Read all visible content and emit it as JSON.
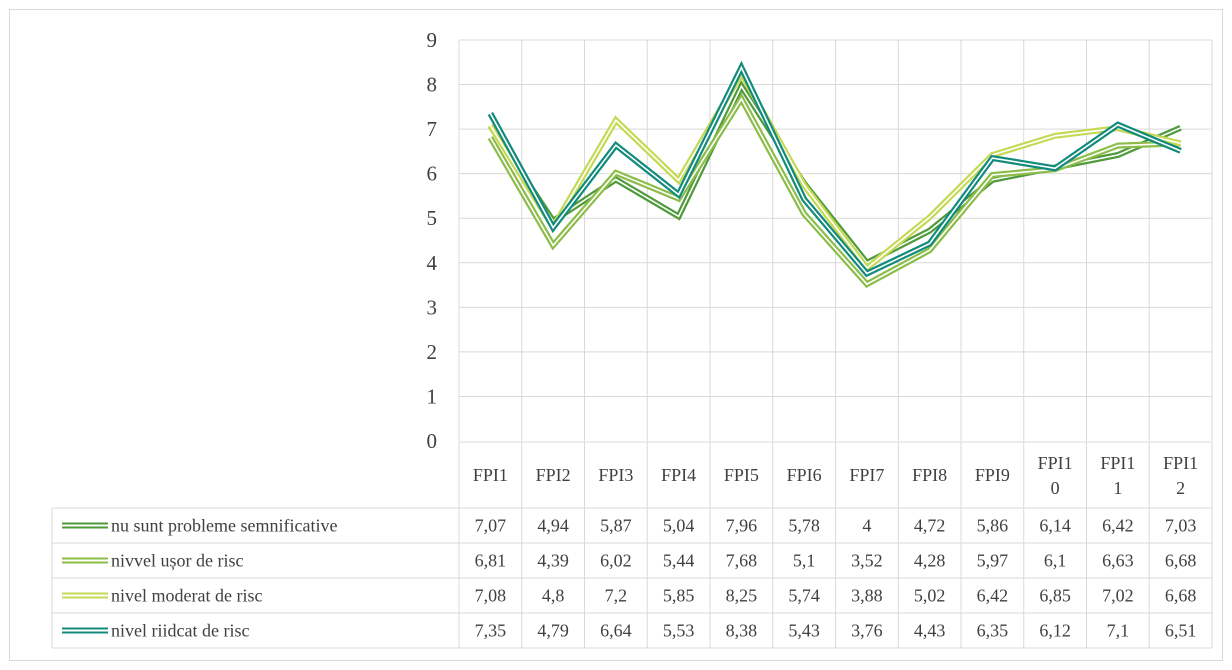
{
  "chart_data": {
    "type": "line",
    "title": "",
    "xlabel": "",
    "ylabel": "",
    "ylim": [
      0,
      9
    ],
    "yticks": [
      "0",
      "1",
      "2",
      "3",
      "4",
      "5",
      "6",
      "7",
      "8",
      "9"
    ],
    "grid": true,
    "legend_position": "data-table",
    "categories": [
      "FPI1",
      "FPI2",
      "FPI3",
      "FPI4",
      "FPI5",
      "FPI6",
      "FPI7",
      "FPI8",
      "FPI9",
      "FPI10",
      "FPI11",
      "FPI12"
    ],
    "category_display": [
      [
        "FPI1"
      ],
      [
        "FPI2"
      ],
      [
        "FPI3"
      ],
      [
        "FPI4"
      ],
      [
        "FPI5"
      ],
      [
        "FPI6"
      ],
      [
        "FPI7"
      ],
      [
        "FPI8"
      ],
      [
        "FPI9"
      ],
      [
        "FPI1",
        "0"
      ],
      [
        "FPI1",
        "1"
      ],
      [
        "FPI1",
        "2"
      ]
    ],
    "series": [
      {
        "name": "nu sunt probleme semnificative",
        "color": "#4f9a3a",
        "values": [
          7.07,
          4.94,
          5.87,
          5.04,
          7.96,
          5.78,
          4,
          4.72,
          5.86,
          6.14,
          6.42,
          7.03
        ],
        "labels": [
          "7,07",
          "4,94",
          "5,87",
          "5,04",
          "7,96",
          "5,78",
          "4",
          "4,72",
          "5,86",
          "6,14",
          "6,42",
          "7,03"
        ]
      },
      {
        "name": "nivvel ușor de risc",
        "color": "#8cbc4a",
        "values": [
          6.81,
          4.39,
          6.02,
          5.44,
          7.68,
          5.1,
          3.52,
          4.28,
          5.97,
          6.1,
          6.63,
          6.68
        ],
        "labels": [
          "6,81",
          "4,39",
          "6,02",
          "5,44",
          "7,68",
          "5,1",
          "3,52",
          "4,28",
          "5,97",
          "6,1",
          "6,63",
          "6,68"
        ]
      },
      {
        "name": "nivel moderat de risc",
        "color": "#c6d955",
        "values": [
          7.08,
          4.8,
          7.2,
          5.85,
          8.25,
          5.74,
          3.88,
          5.02,
          6.42,
          6.85,
          7.02,
          6.68
        ],
        "labels": [
          "7,08",
          "4,8",
          "7,2",
          "5,85",
          "8,25",
          "5,74",
          "3,88",
          "5,02",
          "6,42",
          "6,85",
          "7,02",
          "6,68"
        ]
      },
      {
        "name": "nivel riidcat de risc",
        "color": "#138b7c",
        "values": [
          7.35,
          4.79,
          6.64,
          5.53,
          8.38,
          5.43,
          3.76,
          4.43,
          6.35,
          6.12,
          7.1,
          6.51
        ],
        "labels": [
          "7,35",
          "4,79",
          "6,64",
          "5,53",
          "8,38",
          "5,43",
          "3,76",
          "4,43",
          "6,35",
          "6,12",
          "7,1",
          "6,51"
        ]
      }
    ]
  }
}
